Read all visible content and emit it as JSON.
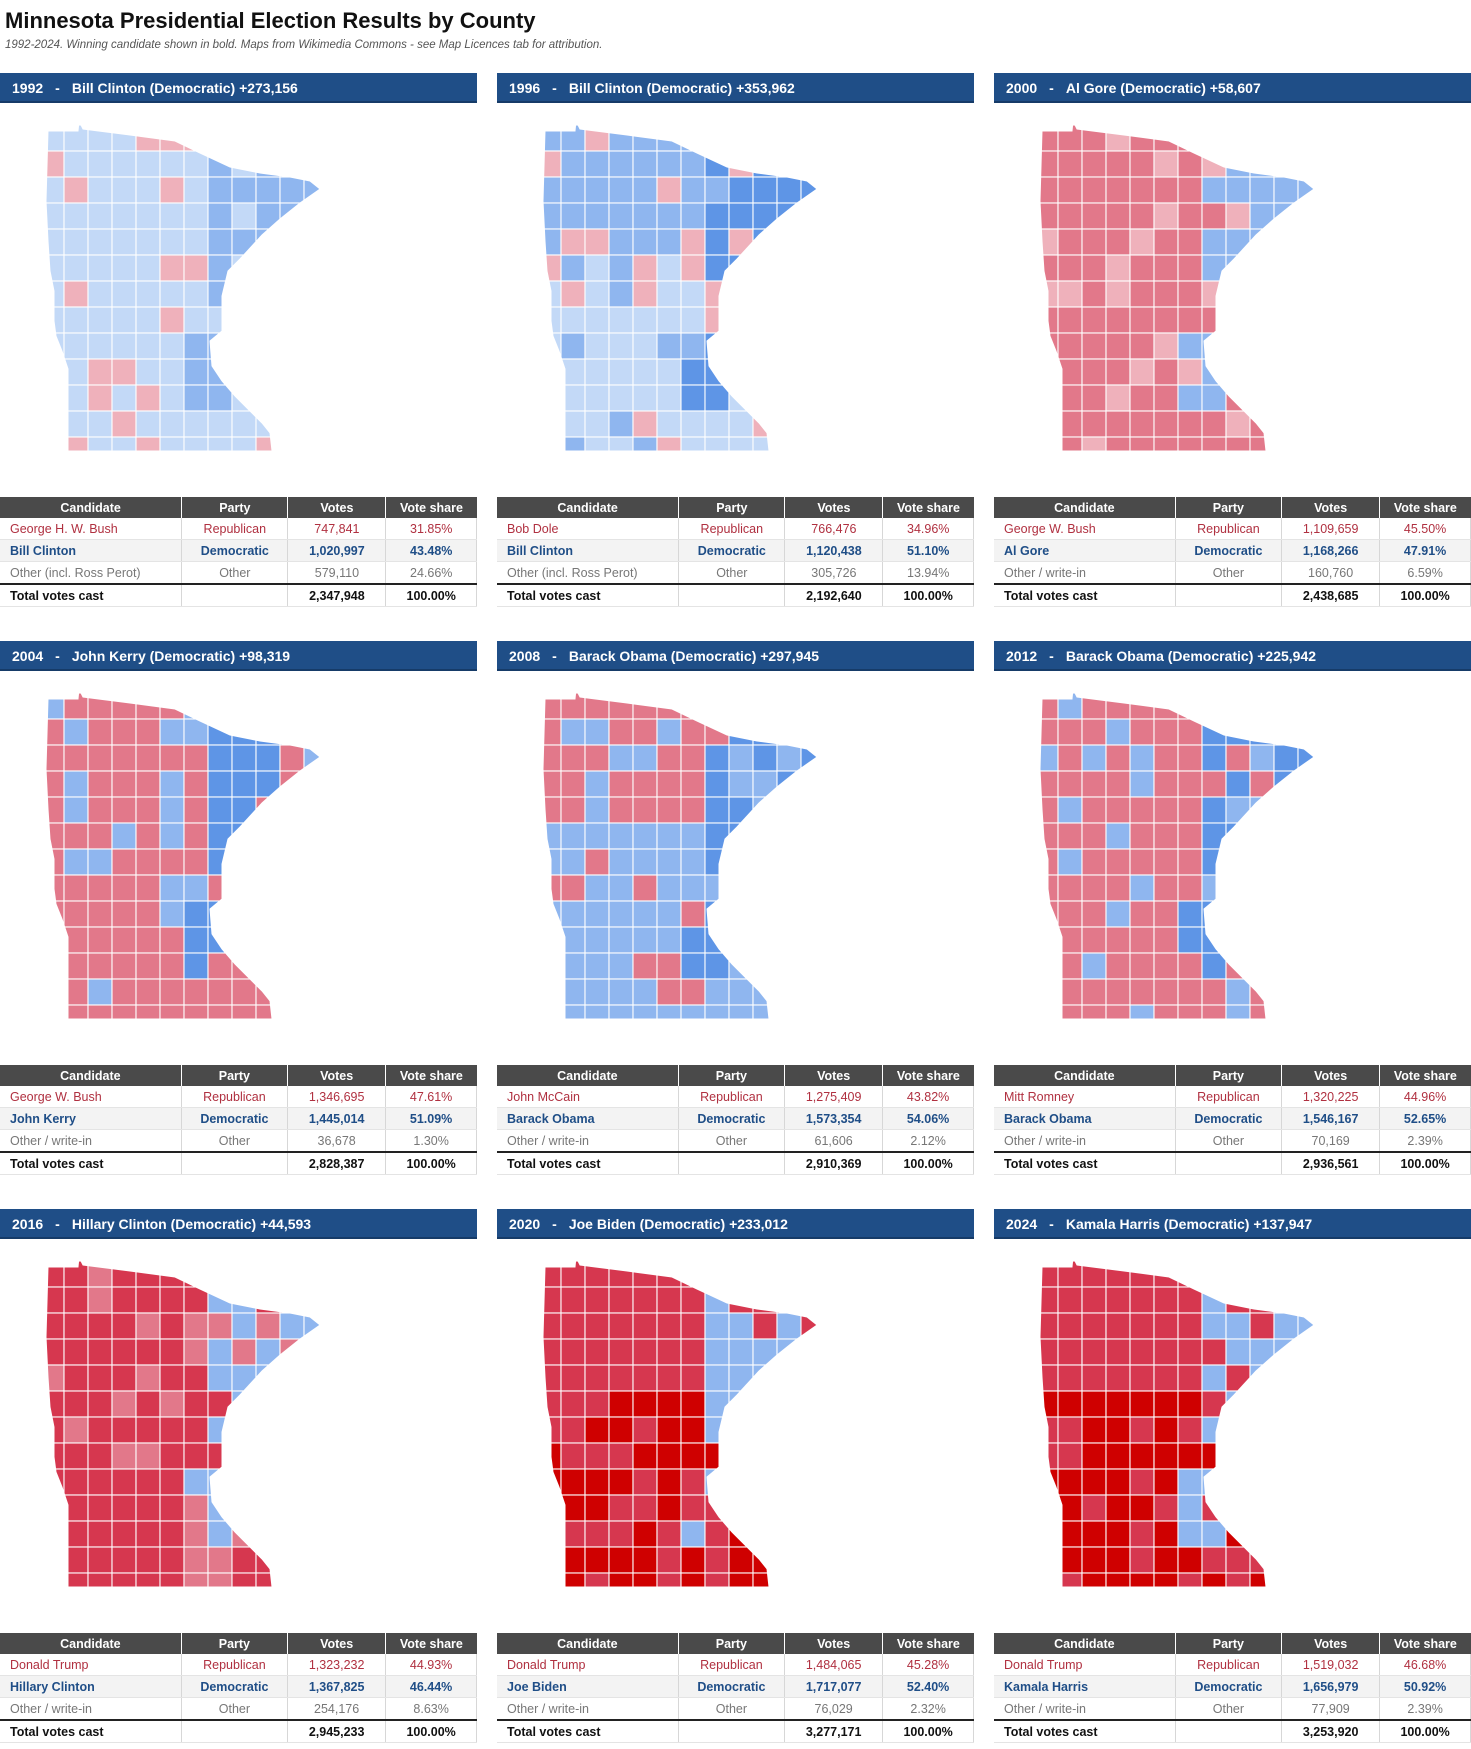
{
  "header": {
    "title": "Minnesota Presidential Election Results by County",
    "subtitle": "1992-2024. Winning candidate shown in bold. Maps from Wikimedia Commons - see Map Licences tab for attribution."
  },
  "table_headers": [
    "Candidate",
    "Party",
    "Votes",
    "Vote share"
  ],
  "colors": {
    "banner": "#1f4e87",
    "table_header": "#4a4a4a",
    "republican_text": "#b03040",
    "democratic_text": "#1f4e87",
    "dem_strong": "#2e6fd8",
    "dem_mid": "#5e95e6",
    "dem_light": "#8fb6ef",
    "dem_pale": "#c3d9f7",
    "rep_strong": "#cf0000",
    "rep_mid": "#d6374f",
    "rep_light": "#e2788a",
    "rep_pale": "#efb1bb"
  },
  "panels": [
    {
      "year": "1992",
      "sep": "-",
      "winner": "Bill Clinton (Democratic) +273,156",
      "palette": [
        "dem_pale",
        "dem_pale",
        "dem_light",
        "rep_pale"
      ],
      "rows": [
        {
          "candidate": "George H. W. Bush",
          "party": "Republican",
          "votes": "747,841",
          "share": "31.85%"
        },
        {
          "candidate": "Bill Clinton",
          "party": "Democratic",
          "votes": "1,020,997",
          "share": "43.48%"
        },
        {
          "candidate": "Other (incl. Ross Perot)",
          "party": "Other",
          "votes": "579,110",
          "share": "24.66%"
        }
      ],
      "total": {
        "label": "Total votes cast",
        "votes": "2,347,948",
        "share": "100.00%"
      }
    },
    {
      "year": "1996",
      "sep": "-",
      "winner": "Bill Clinton (Democratic) +353,962",
      "palette": [
        "dem_pale",
        "dem_light",
        "dem_mid",
        "rep_pale"
      ],
      "rows": [
        {
          "candidate": "Bob Dole",
          "party": "Republican",
          "votes": "766,476",
          "share": "34.96%"
        },
        {
          "candidate": "Bill Clinton",
          "party": "Democratic",
          "votes": "1,120,438",
          "share": "51.10%"
        },
        {
          "candidate": "Other (incl. Ross Perot)",
          "party": "Other",
          "votes": "305,726",
          "share": "13.94%"
        }
      ],
      "total": {
        "label": "Total votes cast",
        "votes": "2,192,640",
        "share": "100.00%"
      }
    },
    {
      "year": "2000",
      "sep": "-",
      "winner": "Al Gore (Democratic) +58,607",
      "palette": [
        "rep_light",
        "rep_light",
        "dem_light",
        "rep_pale"
      ],
      "rows": [
        {
          "candidate": "George W. Bush",
          "party": "Republican",
          "votes": "1,109,659",
          "share": "45.50%"
        },
        {
          "candidate": "Al Gore",
          "party": "Democratic",
          "votes": "1,168,266",
          "share": "47.91%"
        },
        {
          "candidate": "Other / write-in",
          "party": "Other",
          "votes": "160,760",
          "share": "6.59%"
        }
      ],
      "total": {
        "label": "Total votes cast",
        "votes": "2,438,685",
        "share": "100.00%"
      }
    },
    {
      "year": "2004",
      "sep": "-",
      "winner": "John Kerry (Democratic) +98,319",
      "palette": [
        "rep_light",
        "rep_light",
        "dem_mid",
        "dem_light"
      ],
      "rows": [
        {
          "candidate": "George W. Bush",
          "party": "Republican",
          "votes": "1,346,695",
          "share": "47.61%"
        },
        {
          "candidate": "John Kerry",
          "party": "Democratic",
          "votes": "1,445,014",
          "share": "51.09%"
        },
        {
          "candidate": "Other / write-in",
          "party": "Other",
          "votes": "36,678",
          "share": "1.30%"
        }
      ],
      "total": {
        "label": "Total votes cast",
        "votes": "2,828,387",
        "share": "100.00%"
      }
    },
    {
      "year": "2008",
      "sep": "-",
      "winner": "Barack Obama (Democratic) +297,945",
      "palette": [
        "dem_light",
        "rep_light",
        "dem_mid",
        "dem_light"
      ],
      "rows": [
        {
          "candidate": "John McCain",
          "party": "Republican",
          "votes": "1,275,409",
          "share": "43.82%"
        },
        {
          "candidate": "Barack Obama",
          "party": "Democratic",
          "votes": "1,573,354",
          "share": "54.06%"
        },
        {
          "candidate": "Other / write-in",
          "party": "Other",
          "votes": "61,606",
          "share": "2.12%"
        }
      ],
      "total": {
        "label": "Total votes cast",
        "votes": "2,910,369",
        "share": "100.00%"
      }
    },
    {
      "year": "2012",
      "sep": "-",
      "winner": "Barack Obama (Democratic) +225,942",
      "palette": [
        "rep_light",
        "rep_light",
        "dem_mid",
        "dem_light"
      ],
      "rows": [
        {
          "candidate": "Mitt Romney",
          "party": "Republican",
          "votes": "1,320,225",
          "share": "44.96%"
        },
        {
          "candidate": "Barack Obama",
          "party": "Democratic",
          "votes": "1,546,167",
          "share": "52.65%"
        },
        {
          "candidate": "Other / write-in",
          "party": "Other",
          "votes": "70,169",
          "share": "2.39%"
        }
      ],
      "total": {
        "label": "Total votes cast",
        "votes": "2,936,561",
        "share": "100.00%"
      }
    },
    {
      "year": "2016",
      "sep": "-",
      "winner": "Hillary Clinton (Democratic) +44,593",
      "palette": [
        "rep_mid",
        "rep_mid",
        "dem_light",
        "rep_light"
      ],
      "rows": [
        {
          "candidate": "Donald Trump",
          "party": "Republican",
          "votes": "1,323,232",
          "share": "44.93%"
        },
        {
          "candidate": "Hillary Clinton",
          "party": "Democratic",
          "votes": "1,367,825",
          "share": "46.44%"
        },
        {
          "candidate": "Other / write-in",
          "party": "Other",
          "votes": "254,176",
          "share": "8.63%"
        }
      ],
      "total": {
        "label": "Total votes cast",
        "votes": "2,945,233",
        "share": "100.00%"
      }
    },
    {
      "year": "2020",
      "sep": "-",
      "winner": "Joe Biden (Democratic) +233,012",
      "palette": [
        "rep_strong",
        "rep_mid",
        "dem_light",
        "rep_mid"
      ],
      "rows": [
        {
          "candidate": "Donald Trump",
          "party": "Republican",
          "votes": "1,484,065",
          "share": "45.28%"
        },
        {
          "candidate": "Joe Biden",
          "party": "Democratic",
          "votes": "1,717,077",
          "share": "52.40%"
        },
        {
          "candidate": "Other / write-in",
          "party": "Other",
          "votes": "76,029",
          "share": "2.32%"
        }
      ],
      "total": {
        "label": "Total votes cast",
        "votes": "3,277,171",
        "share": "100.00%"
      }
    },
    {
      "year": "2024",
      "sep": "-",
      "winner": "Kamala Harris (Democratic) +137,947",
      "palette": [
        "rep_strong",
        "rep_mid",
        "dem_light",
        "rep_mid"
      ],
      "rows": [
        {
          "candidate": "Donald Trump",
          "party": "Republican",
          "votes": "1,519,032",
          "share": "46.68%"
        },
        {
          "candidate": "Kamala Harris",
          "party": "Democratic",
          "votes": "1,656,979",
          "share": "50.92%"
        },
        {
          "candidate": "Other / write-in",
          "party": "Other",
          "votes": "77,909",
          "share": "2.39%"
        }
      ],
      "total": {
        "label": "Total votes cast",
        "votes": "3,253,920",
        "share": "100.00%"
      }
    }
  ]
}
